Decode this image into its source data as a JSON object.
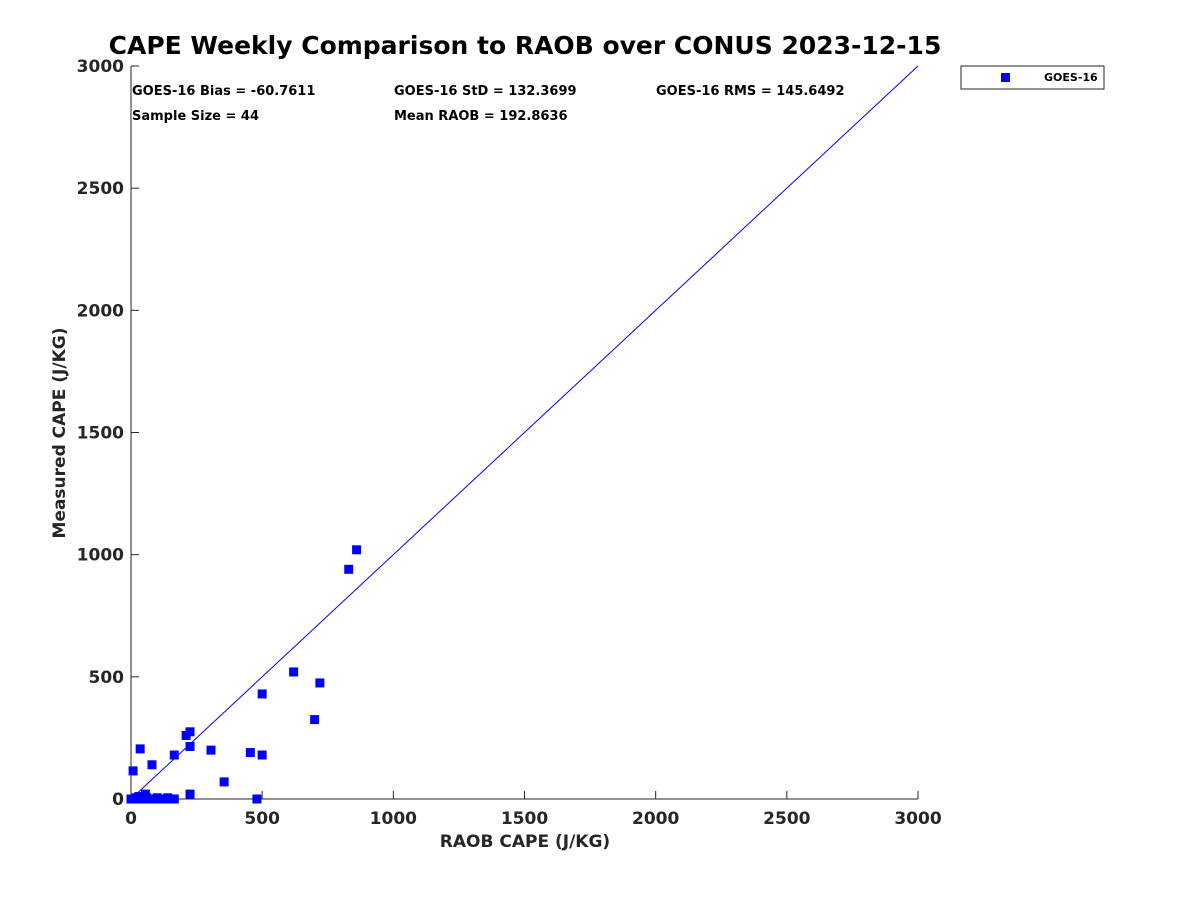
{
  "chart_data": {
    "type": "scatter",
    "title": "CAPE Weekly Comparison to RAOB over CONUS 2023-12-15",
    "xlabel": "RAOB CAPE (J/KG)",
    "ylabel": "Measured CAPE (J/KG)",
    "xlim": [
      0,
      3000
    ],
    "ylim": [
      0,
      3000
    ],
    "xticks": [
      "0",
      "500",
      "1000",
      "1500",
      "2000",
      "2500",
      "3000"
    ],
    "yticks": [
      "0",
      "500",
      "1000",
      "1500",
      "2000",
      "2500",
      "3000"
    ],
    "xtick_values": [
      0,
      500,
      1000,
      1500,
      2000,
      2500,
      3000
    ],
    "ytick_values": [
      0,
      500,
      1000,
      1500,
      2000,
      2500,
      3000
    ],
    "grid": false,
    "legend_position": "top-right-outside",
    "reference_line": {
      "name": "1:1 line",
      "x": [
        0,
        3000
      ],
      "y": [
        0,
        3000
      ],
      "color": "#0000ff"
    },
    "stats": [
      "GOES-16 Bias = -60.7611",
      "GOES-16 StD = 132.3699",
      "GOES-16 RMS = 145.6492",
      "Sample Size = 44",
      "Mean RAOB = 192.8636"
    ],
    "series": [
      {
        "name": "GOES-16",
        "color": "#0000ff",
        "marker": "square",
        "points": [
          [
            0,
            0
          ],
          [
            5,
            0
          ],
          [
            10,
            0
          ],
          [
            15,
            0
          ],
          [
            25,
            0
          ],
          [
            35,
            0
          ],
          [
            45,
            0
          ],
          [
            55,
            0
          ],
          [
            65,
            0
          ],
          [
            75,
            0
          ],
          [
            85,
            0
          ],
          [
            95,
            0
          ],
          [
            105,
            0
          ],
          [
            115,
            0
          ],
          [
            125,
            0
          ],
          [
            135,
            0
          ],
          [
            165,
            0
          ],
          [
            480,
            0
          ],
          [
            55,
            20
          ],
          [
            225,
            20
          ],
          [
            355,
            70
          ],
          [
            8,
            115
          ],
          [
            80,
            140
          ],
          [
            35,
            205
          ],
          [
            165,
            180
          ],
          [
            225,
            215
          ],
          [
            305,
            200
          ],
          [
            455,
            190
          ],
          [
            500,
            180
          ],
          [
            210,
            260
          ],
          [
            225,
            275
          ],
          [
            500,
            430
          ],
          [
            700,
            325
          ],
          [
            620,
            520
          ],
          [
            720,
            475
          ],
          [
            830,
            940
          ],
          [
            860,
            1020
          ],
          [
            20,
            5
          ],
          [
            40,
            5
          ],
          [
            60,
            5
          ],
          [
            100,
            5
          ],
          [
            140,
            5
          ],
          [
            150,
            0
          ],
          [
            30,
            10
          ]
        ]
      }
    ]
  }
}
